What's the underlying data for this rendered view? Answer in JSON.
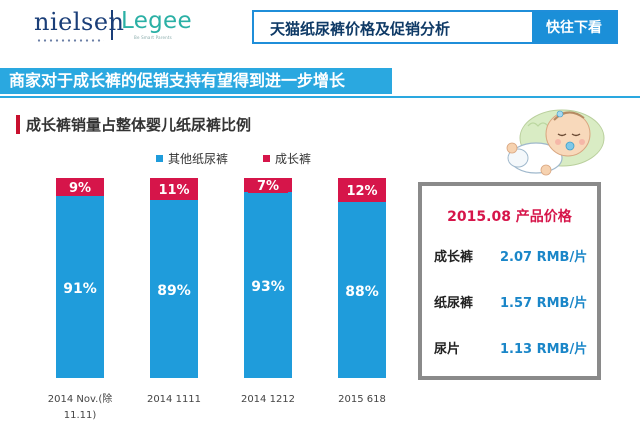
{
  "header": {
    "logo_nielsen": "nielsen",
    "logo_legee": "Legee",
    "logo_legee_sub": "Be Smart Parents",
    "title": "天猫纸尿裤价格及促销分析",
    "button": "快往下看"
  },
  "banner": {
    "title": "商家对于成长裤的促销支持有望得到进一步增长"
  },
  "colors": {
    "blue": "#1f9cdb",
    "red": "#d6154a",
    "banner": "#2aa8e0"
  },
  "chart_data": {
    "type": "bar",
    "stacked": true,
    "title": "成长裤销量占整体婴儿纸尿裤比例",
    "categories": [
      "2014 Nov.(除11.11)",
      "2014 1111",
      "2014 1212",
      "2015 618"
    ],
    "series": [
      {
        "name": "其他纸尿裤",
        "values": [
          91,
          89,
          93,
          88
        ],
        "labels": [
          "91%",
          "89%",
          "93%",
          "88%"
        ],
        "color": "#1f9cdb"
      },
      {
        "name": "成长裤",
        "values": [
          9,
          11,
          7,
          12
        ],
        "labels": [
          "9%",
          "11%",
          "7%",
          "12%"
        ],
        "color": "#d6154a"
      }
    ],
    "ylim": [
      0,
      100
    ],
    "legend": "top",
    "grid": false
  },
  "price_box": {
    "title": "2015.08 产品价格",
    "rows": [
      {
        "label": "成长裤",
        "value": "2.07 RMB/片"
      },
      {
        "label": "纸尿裤",
        "value": "1.57 RMB/片"
      },
      {
        "label": "尿片",
        "value": "1.13 RMB/片"
      }
    ]
  },
  "illustration": {
    "icon": "sleeping-baby-icon"
  }
}
